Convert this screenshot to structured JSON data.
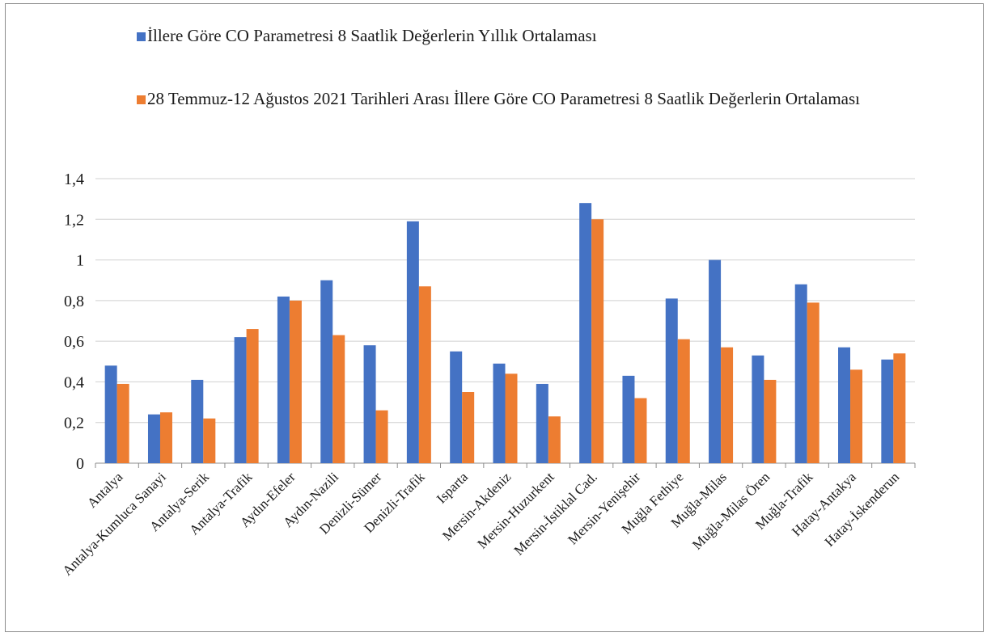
{
  "chart_data": {
    "type": "bar",
    "title": "",
    "xlabel": "",
    "ylabel": "",
    "ylim": [
      0,
      1.4
    ],
    "yticks": [
      "0",
      "0,2",
      "0,4",
      "0,6",
      "0,8",
      "1",
      "1,2",
      "1,4"
    ],
    "grid": true,
    "legend_position": "top",
    "categories": [
      "Antalya",
      "Antalya-Kumluca Sanayi",
      "Antalya-Serik",
      "Antalya-Trafik",
      "Aydın-Efeler",
      "Aydın-Nazili",
      "Denizli-Sümer",
      "Denizli-Trafik",
      "Isparta",
      "Mersin-Akdeniz",
      "Mersin-Huzurkent",
      "Mersin-İstiklal Cad.",
      "Mersin-Yenişehir",
      "Muğla Fethiye",
      "Muğla-Milas",
      "Muğla-Milas Ören",
      "Muğla-Trafik",
      "Hatay-Antakya",
      "Hatay-İskenderun"
    ],
    "series": [
      {
        "name": "İllere Göre CO Parametresi 8 Saatlik Değerlerin Yıllık Ortalaması",
        "color": "#4472C4",
        "values": [
          0.48,
          0.24,
          0.41,
          0.62,
          0.82,
          0.9,
          0.58,
          1.19,
          0.55,
          0.49,
          0.39,
          1.28,
          0.43,
          0.81,
          1.0,
          0.53,
          0.88,
          0.57,
          0.51
        ]
      },
      {
        "name": "28 Temmuz-12 Ağustos 2021 Tarihleri Arası İllere Göre CO Parametresi 8 Saatlik Değerlerin Ortalaması",
        "color": "#ED7D31",
        "values": [
          0.39,
          0.25,
          0.22,
          0.66,
          0.8,
          0.63,
          0.26,
          0.87,
          0.35,
          0.44,
          0.23,
          1.2,
          0.32,
          0.61,
          0.57,
          0.41,
          0.79,
          0.46,
          0.54
        ]
      }
    ]
  }
}
